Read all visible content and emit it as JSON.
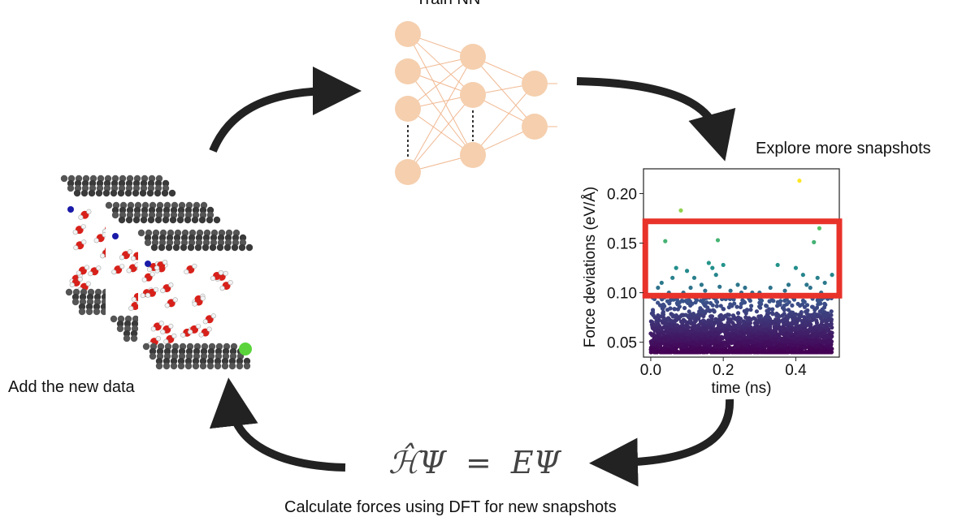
{
  "labels": {
    "train": "Train NN",
    "explore": "Explore more snapshots",
    "add": "Add the new data",
    "calculate": "Calculate forces using DFT for new snapshots"
  },
  "equation": {
    "lhs": "ℋ̂Ψ",
    "eq": "=",
    "rhs": "EΨ"
  },
  "network": {
    "layers": [
      4,
      3,
      2
    ],
    "node_color": "#f5cfae",
    "edge_color": "#f0b892"
  },
  "arrow_color": "#222222",
  "highlight_color": "#e8322a",
  "chart_data": {
    "type": "scatter",
    "xlabel": "time (ns)",
    "ylabel": "Force deviations (eV/Å)",
    "xlim": [
      -0.02,
      0.52
    ],
    "ylim": [
      0.035,
      0.225
    ],
    "xticks": [
      "0.0",
      "0.2",
      "0.4"
    ],
    "yticks": [
      "0.05",
      "0.10",
      "0.15",
      "0.20"
    ],
    "colormap": "viridis",
    "dense_band": {
      "x_range": [
        0.0,
        0.5
      ],
      "y_range": [
        0.04,
        0.097
      ],
      "approx_points": 2500
    },
    "outliers": [
      [
        0.083,
        0.183
      ],
      [
        0.41,
        0.213
      ],
      [
        0.04,
        0.152
      ],
      [
        0.185,
        0.153
      ],
      [
        0.465,
        0.165
      ],
      [
        0.45,
        0.151
      ],
      [
        0.1,
        0.122
      ],
      [
        0.12,
        0.115
      ],
      [
        0.06,
        0.115
      ],
      [
        0.03,
        0.11
      ],
      [
        0.07,
        0.125
      ],
      [
        0.16,
        0.13
      ],
      [
        0.17,
        0.125
      ],
      [
        0.2,
        0.128
      ],
      [
        0.18,
        0.118
      ],
      [
        0.14,
        0.108
      ],
      [
        0.26,
        0.105
      ],
      [
        0.28,
        0.1
      ],
      [
        0.33,
        0.105
      ],
      [
        0.35,
        0.128
      ],
      [
        0.4,
        0.125
      ],
      [
        0.42,
        0.118
      ],
      [
        0.46,
        0.115
      ],
      [
        0.48,
        0.11
      ],
      [
        0.5,
        0.118
      ],
      [
        0.02,
        0.105
      ],
      [
        0.09,
        0.1
      ],
      [
        0.22,
        0.102
      ],
      [
        0.24,
        0.108
      ],
      [
        0.3,
        0.1
      ],
      [
        0.37,
        0.102
      ],
      [
        0.44,
        0.105
      ],
      [
        0.47,
        0.1
      ],
      [
        0.11,
        0.105
      ],
      [
        0.15,
        0.102
      ],
      [
        0.05,
        0.1
      ],
      [
        0.38,
        0.108
      ],
      [
        0.25,
        0.1
      ],
      [
        0.43,
        0.108
      ],
      [
        0.19,
        0.106
      ]
    ],
    "highlight_box": {
      "x_range": [
        -0.015,
        0.52
      ],
      "y_range": [
        0.097,
        0.172
      ]
    }
  }
}
